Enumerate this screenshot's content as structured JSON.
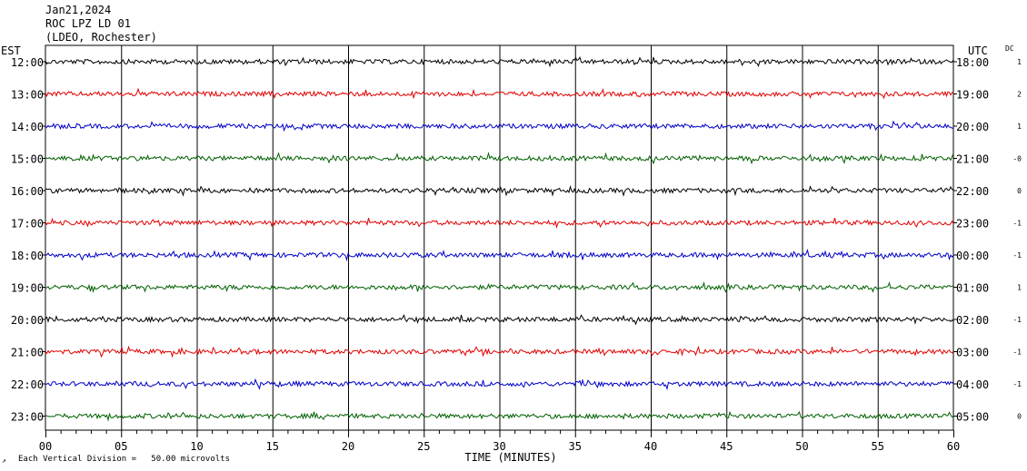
{
  "header": {
    "date": "Jan21,2024",
    "station": "ROC LPZ LD 01",
    "network": "(LDEO, Rochester)"
  },
  "chart_data": {
    "type": "line",
    "title": "",
    "xlabel": "TIME (MINUTES)",
    "left_axis_label": "EST",
    "right_axis_label": "UTC",
    "dc_label": "DC",
    "xlim": [
      0,
      60
    ],
    "x_ticks": [
      "00",
      "05",
      "10",
      "15",
      "20",
      "25",
      "30",
      "35",
      "40",
      "45",
      "50",
      "55",
      "60"
    ],
    "grid": "vertical lines every minute, labeled every 5 minutes",
    "footer_note": "Each Vertical Division =   50.00 microvolts",
    "trace_colors": [
      "#000000",
      "#e00000",
      "#0000c8",
      "#006000"
    ],
    "rows": [
      {
        "est": "12:00",
        "utc": "18:00",
        "dc": "1"
      },
      {
        "est": "13:00",
        "utc": "19:00",
        "dc": "2"
      },
      {
        "est": "14:00",
        "utc": "20:00",
        "dc": "1"
      },
      {
        "est": "15:00",
        "utc": "21:00",
        "dc": "-0"
      },
      {
        "est": "16:00",
        "utc": "22:00",
        "dc": "0"
      },
      {
        "est": "17:00",
        "utc": "23:00",
        "dc": "-1"
      },
      {
        "est": "18:00",
        "utc": "00:00",
        "dc": "-1"
      },
      {
        "est": "19:00",
        "utc": "01:00",
        "dc": "1"
      },
      {
        "est": "20:00",
        "utc": "02:00",
        "dc": "-1"
      },
      {
        "est": "21:00",
        "utc": "03:00",
        "dc": "-1"
      },
      {
        "est": "22:00",
        "utc": "04:00",
        "dc": "-1"
      },
      {
        "est": "23:00",
        "utc": "05:00",
        "dc": "0"
      }
    ]
  }
}
